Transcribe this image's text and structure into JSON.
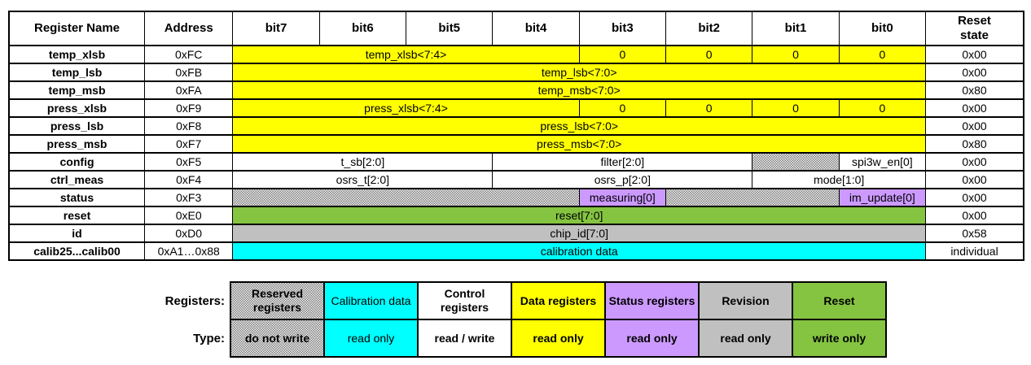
{
  "colors": {
    "yellow": "#FFFF00",
    "cyan": "#00FFFF",
    "green": "#85C441",
    "gray": "#C0C0C0",
    "purple": "#CC99FF"
  },
  "table": {
    "headers": [
      "Register Name",
      "Address",
      "bit7",
      "bit6",
      "bit5",
      "bit4",
      "bit3",
      "bit2",
      "bit1",
      "bit0",
      "Reset\nstate"
    ],
    "rows": [
      {
        "name": "temp_xlsb",
        "address": "0xFC",
        "reset": "0x00",
        "cells": [
          {
            "span": 4,
            "text": "temp_xlsb<7:4>",
            "style": "yellow"
          },
          {
            "span": 1,
            "text": "0",
            "style": "yellow"
          },
          {
            "span": 1,
            "text": "0",
            "style": "yellow"
          },
          {
            "span": 1,
            "text": "0",
            "style": "yellow"
          },
          {
            "span": 1,
            "text": "0",
            "style": "yellow"
          }
        ]
      },
      {
        "name": "temp_lsb",
        "address": "0xFB",
        "reset": "0x00",
        "cells": [
          {
            "span": 8,
            "text": "temp_lsb<7:0>",
            "style": "yellow"
          }
        ]
      },
      {
        "name": "temp_msb",
        "address": "0xFA",
        "reset": "0x80",
        "cells": [
          {
            "span": 8,
            "text": "temp_msb<7:0>",
            "style": "yellow"
          }
        ]
      },
      {
        "name": "press_xlsb",
        "address": "0xF9",
        "reset": "0x00",
        "cells": [
          {
            "span": 4,
            "text": "press_xlsb<7:4>",
            "style": "yellow"
          },
          {
            "span": 1,
            "text": "0",
            "style": "yellow"
          },
          {
            "span": 1,
            "text": "0",
            "style": "yellow"
          },
          {
            "span": 1,
            "text": "0",
            "style": "yellow"
          },
          {
            "span": 1,
            "text": "0",
            "style": "yellow"
          }
        ]
      },
      {
        "name": "press_lsb",
        "address": "0xF8",
        "reset": "0x00",
        "cells": [
          {
            "span": 8,
            "text": "press_lsb<7:0>",
            "style": "yellow"
          }
        ]
      },
      {
        "name": "press_msb",
        "address": "0xF7",
        "reset": "0x80",
        "cells": [
          {
            "span": 8,
            "text": "press_msb<7:0>",
            "style": "yellow"
          }
        ]
      },
      {
        "name": "config",
        "address": "0xF5",
        "reset": "0x00",
        "cells": [
          {
            "span": 3,
            "text": "t_sb[2:0]",
            "style": "white"
          },
          {
            "span": 3,
            "text": "filter[2:0]",
            "style": "white"
          },
          {
            "span": 1,
            "text": "",
            "style": "hatch"
          },
          {
            "span": 1,
            "text": "spi3w_en[0]",
            "style": "white"
          }
        ]
      },
      {
        "name": "ctrl_meas",
        "address": "0xF4",
        "reset": "0x00",
        "cells": [
          {
            "span": 3,
            "text": "osrs_t[2:0]",
            "style": "white"
          },
          {
            "span": 3,
            "text": "osrs_p[2:0]",
            "style": "white"
          },
          {
            "span": 2,
            "text": "mode[1:0]",
            "style": "white"
          }
        ]
      },
      {
        "name": "status",
        "address": "0xF3",
        "reset": "0x00",
        "cells": [
          {
            "span": 4,
            "text": "",
            "style": "hatch"
          },
          {
            "span": 1,
            "text": "measuring[0]",
            "style": "purple"
          },
          {
            "span": 2,
            "text": "",
            "style": "hatch"
          },
          {
            "span": 1,
            "text": "im_update[0]",
            "style": "purple"
          }
        ]
      },
      {
        "name": "reset",
        "address": "0xE0",
        "reset": "0x00",
        "cells": [
          {
            "span": 8,
            "text": "reset[7:0]",
            "style": "green"
          }
        ]
      },
      {
        "name": "id",
        "address": "0xD0",
        "reset": "0x58",
        "cells": [
          {
            "span": 8,
            "text": "chip_id[7:0]",
            "style": "gray"
          }
        ]
      },
      {
        "name": "calib25...calib00",
        "address": "0xA1…0x88",
        "reset": "individual",
        "cells": [
          {
            "span": 8,
            "text": "calibration data",
            "style": "cyan"
          }
        ]
      }
    ]
  },
  "legend": {
    "registers_label": "Registers:",
    "type_label": "Type:",
    "columns": [
      {
        "style": "hatch",
        "bold": true,
        "registers": "Reserved registers",
        "type": "do not write"
      },
      {
        "style": "cyan",
        "bold": false,
        "registers": "Calibration data",
        "type": "read only"
      },
      {
        "style": "white",
        "bold": true,
        "registers": "Control registers",
        "type": "read / write"
      },
      {
        "style": "yellow",
        "bold": true,
        "registers": "Data registers",
        "type": "read only"
      },
      {
        "style": "purple",
        "bold": true,
        "registers": "Status registers",
        "type": "read only"
      },
      {
        "style": "gray",
        "bold": true,
        "registers": "Revision",
        "type": "read only"
      },
      {
        "style": "green",
        "bold": true,
        "registers": "Reset",
        "type": "write only"
      }
    ]
  }
}
